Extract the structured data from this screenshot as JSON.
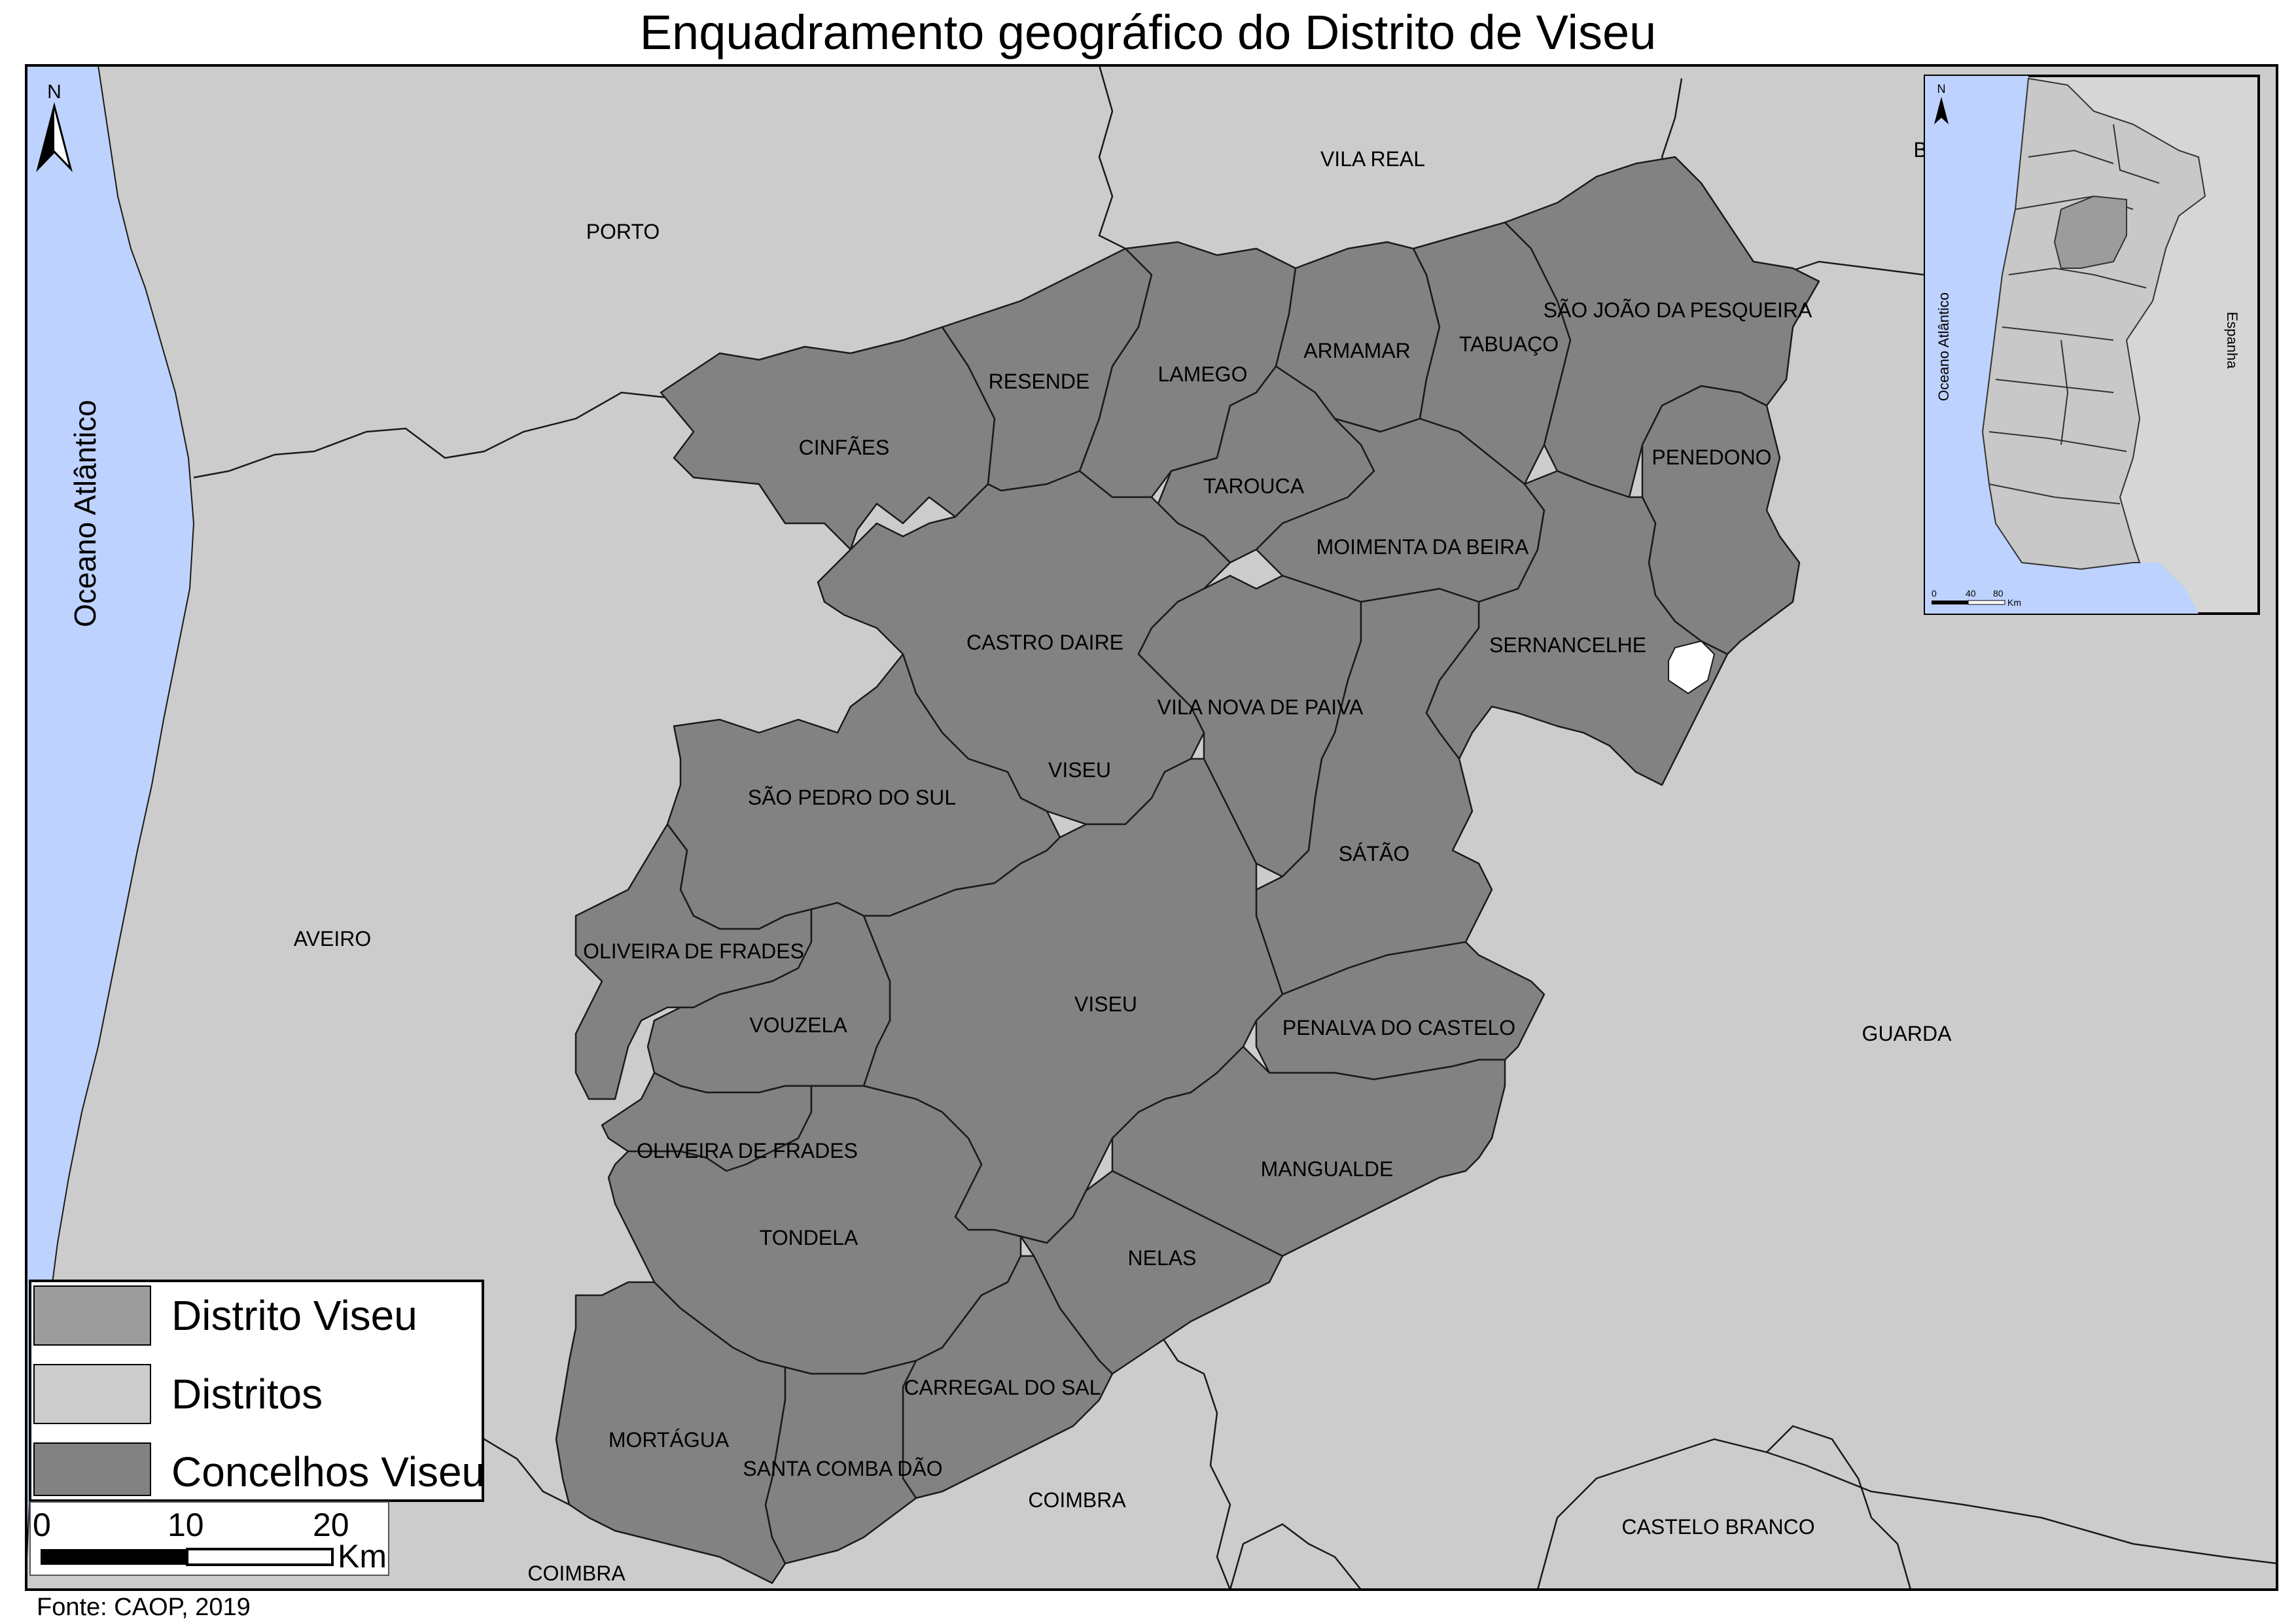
{
  "title": "Enquadramento geográfico do Distrito de Viseu",
  "source": "Fonte: CAOP, 2019",
  "north_arrow": {
    "letter": "N"
  },
  "ocean_label": "Oceano Atlântico",
  "districts": [
    {
      "id": "porto",
      "name": "PORTO"
    },
    {
      "id": "vila-real",
      "name": "VILA REAL"
    },
    {
      "id": "aveiro",
      "name": "AVEIRO"
    },
    {
      "id": "guarda",
      "name": "GUARDA"
    },
    {
      "id": "coimbra-east",
      "name": "COIMBRA"
    },
    {
      "id": "coimbra-south",
      "name": "COIMBRA"
    },
    {
      "id": "castelo-branco",
      "name": "CASTELO BRANCO"
    },
    {
      "id": "braganca-cut",
      "name": "B"
    }
  ],
  "concelhos": [
    {
      "id": "cinfaes",
      "name": "CINFÃES"
    },
    {
      "id": "resende",
      "name": "RESENDE"
    },
    {
      "id": "lamego",
      "name": "LAMEGO"
    },
    {
      "id": "armamar",
      "name": "ARMAMAR"
    },
    {
      "id": "tabuaco",
      "name": "TABUAÇO"
    },
    {
      "id": "sao-joao-da-pesqueira",
      "name": "SÃO JOÃO DA PESQUEIRA"
    },
    {
      "id": "penedono",
      "name": "PENEDONO"
    },
    {
      "id": "tarouca",
      "name": "TAROUCA"
    },
    {
      "id": "moimenta-da-beira",
      "name": "MOIMENTA DA BEIRA"
    },
    {
      "id": "sernancelhe",
      "name": "SERNANCELHE"
    },
    {
      "id": "castro-daire",
      "name": "CASTRO DAIRE"
    },
    {
      "id": "vila-nova-de-paiva",
      "name": "VILA NOVA DE PAIVA"
    },
    {
      "id": "viseu-north",
      "name": "VISEU"
    },
    {
      "id": "sao-pedro-do-sul",
      "name": "SÃO PEDRO DO SUL"
    },
    {
      "id": "satao",
      "name": "SÁTÃO"
    },
    {
      "id": "oliveira-de-frades-1",
      "name": "OLIVEIRA DE FRADES"
    },
    {
      "id": "viseu",
      "name": "VISEU"
    },
    {
      "id": "vouzela",
      "name": "VOUZELA"
    },
    {
      "id": "penalva-do-castelo",
      "name": "PENALVA DO CASTELO"
    },
    {
      "id": "oliveira-de-frades-2",
      "name": "OLIVEIRA DE FRADES"
    },
    {
      "id": "mangualde",
      "name": "MANGUALDE"
    },
    {
      "id": "tondela",
      "name": "TONDELA"
    },
    {
      "id": "nelas",
      "name": "NELAS"
    },
    {
      "id": "carregal-do-sal",
      "name": "CARREGAL DO SAL"
    },
    {
      "id": "mortagua",
      "name": "MORTÁGUA"
    },
    {
      "id": "santa-comba-dao",
      "name": "SANTA COMBA DÃO"
    }
  ],
  "inset": {
    "north_letter": "N",
    "ocean_label": "Oceano Atlântico",
    "country_label": "Espanha",
    "scale_ticks": [
      "0",
      "40",
      "80"
    ],
    "scale_unit": "Km"
  },
  "legend": {
    "items": [
      {
        "label": "Distrito Viseu",
        "color": "#9c9c9c"
      },
      {
        "label": "Distritos",
        "color": "#cccccc"
      },
      {
        "label": "Concelhos Viseu",
        "color": "#828282"
      }
    ]
  },
  "scale_bar": {
    "ticks": [
      "0",
      "10",
      "20"
    ],
    "unit": "Km"
  },
  "colors": {
    "sea": "#bed2ff",
    "districts": "#cccccc",
    "viseu_concelhos": "#828282",
    "inset_viseu": "#9c9c9c",
    "outline": "#1a1a1a"
  }
}
